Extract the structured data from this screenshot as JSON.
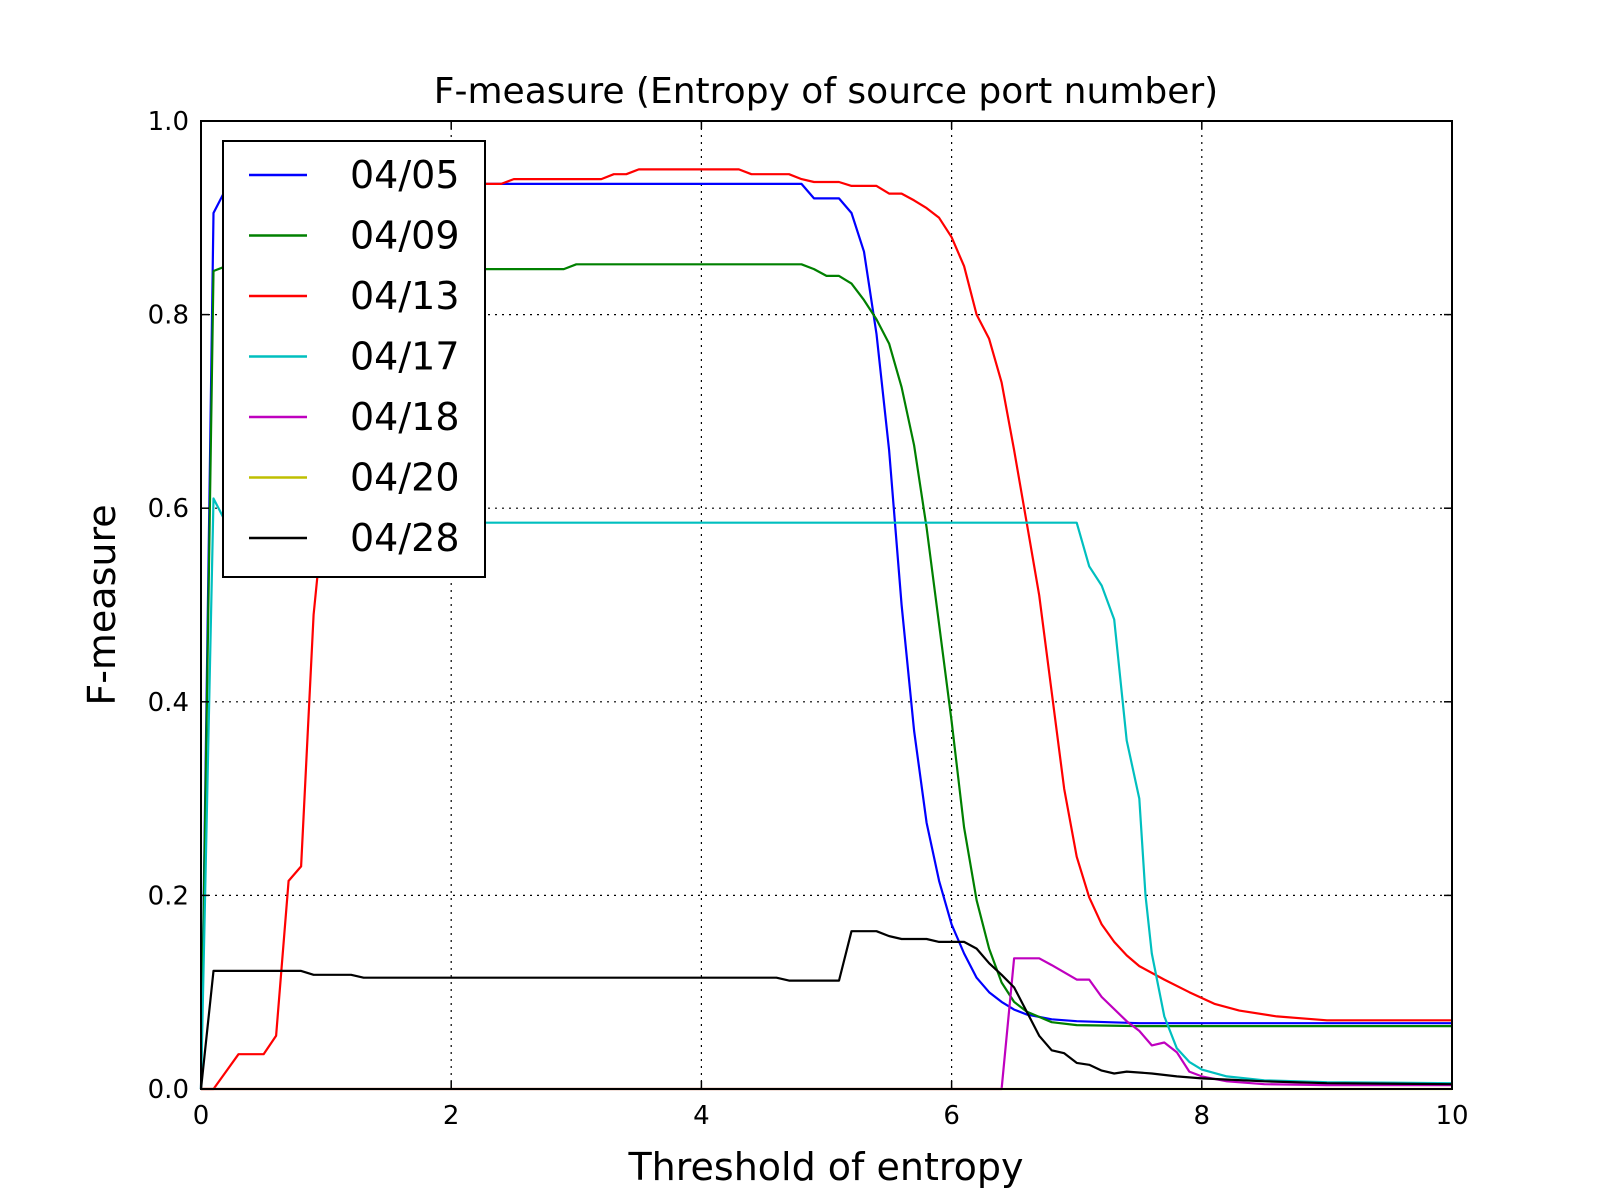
{
  "chart_data": {
    "type": "line",
    "title": "F-measure (Entropy of source port number)",
    "xlabel": "Threshold of entropy",
    "ylabel": "F-measure",
    "xlim": [
      0,
      10
    ],
    "ylim": [
      0,
      1.0
    ],
    "xticks": [
      0,
      2,
      4,
      6,
      8,
      10
    ],
    "xtick_labels": [
      "0",
      "2",
      "4",
      "6",
      "8",
      "10"
    ],
    "yticks": [
      0.0,
      0.2,
      0.4,
      0.6,
      0.8,
      1.0
    ],
    "ytick_labels": [
      "0.0",
      "0.2",
      "0.4",
      "0.6",
      "0.8",
      "1.0"
    ],
    "grid": true,
    "legend_position": "upper-left",
    "series": [
      {
        "name": "04/05",
        "color": "#0000ff",
        "points": [
          [
            0,
            0
          ],
          [
            0.1,
            0.905
          ],
          [
            0.2,
            0.93
          ],
          [
            0.4,
            0.935
          ],
          [
            1,
            0.935
          ],
          [
            2,
            0.935
          ],
          [
            3,
            0.935
          ],
          [
            4,
            0.935
          ],
          [
            4.8,
            0.935
          ],
          [
            4.9,
            0.92
          ],
          [
            5.1,
            0.92
          ],
          [
            5.2,
            0.905
          ],
          [
            5.3,
            0.865
          ],
          [
            5.4,
            0.78
          ],
          [
            5.5,
            0.66
          ],
          [
            5.6,
            0.5
          ],
          [
            5.7,
            0.37
          ],
          [
            5.8,
            0.275
          ],
          [
            5.9,
            0.215
          ],
          [
            6.0,
            0.17
          ],
          [
            6.1,
            0.14
          ],
          [
            6.2,
            0.115
          ],
          [
            6.3,
            0.1
          ],
          [
            6.4,
            0.09
          ],
          [
            6.5,
            0.082
          ],
          [
            6.6,
            0.077
          ],
          [
            6.8,
            0.072
          ],
          [
            7.0,
            0.07
          ],
          [
            7.5,
            0.068
          ],
          [
            8,
            0.068
          ],
          [
            9,
            0.068
          ],
          [
            10,
            0.068
          ]
        ]
      },
      {
        "name": "04/09",
        "color": "#008000",
        "points": [
          [
            0,
            0
          ],
          [
            0.1,
            0.845
          ],
          [
            0.2,
            0.85
          ],
          [
            0.5,
            0.847
          ],
          [
            1,
            0.847
          ],
          [
            2,
            0.847
          ],
          [
            2.9,
            0.847
          ],
          [
            3.0,
            0.852
          ],
          [
            4,
            0.852
          ],
          [
            4.8,
            0.852
          ],
          [
            4.9,
            0.847
          ],
          [
            5.0,
            0.84
          ],
          [
            5.1,
            0.84
          ],
          [
            5.2,
            0.832
          ],
          [
            5.3,
            0.815
          ],
          [
            5.4,
            0.795
          ],
          [
            5.5,
            0.77
          ],
          [
            5.6,
            0.725
          ],
          [
            5.7,
            0.665
          ],
          [
            5.8,
            0.58
          ],
          [
            5.9,
            0.48
          ],
          [
            6.0,
            0.38
          ],
          [
            6.1,
            0.27
          ],
          [
            6.2,
            0.195
          ],
          [
            6.3,
            0.145
          ],
          [
            6.4,
            0.11
          ],
          [
            6.5,
            0.09
          ],
          [
            6.6,
            0.08
          ],
          [
            6.8,
            0.069
          ],
          [
            7.0,
            0.066
          ],
          [
            7.5,
            0.065
          ],
          [
            8,
            0.065
          ],
          [
            9,
            0.065
          ],
          [
            10,
            0.065
          ]
        ]
      },
      {
        "name": "04/13",
        "color": "#ff0000",
        "points": [
          [
            0,
            0
          ],
          [
            0.1,
            0
          ],
          [
            0.2,
            0.018
          ],
          [
            0.3,
            0.036
          ],
          [
            0.5,
            0.036
          ],
          [
            0.6,
            0.055
          ],
          [
            0.7,
            0.215
          ],
          [
            0.8,
            0.23
          ],
          [
            0.9,
            0.49
          ],
          [
            1.0,
            0.62
          ],
          [
            1.1,
            0.8
          ],
          [
            1.2,
            0.88
          ],
          [
            1.4,
            0.92
          ],
          [
            1.6,
            0.93
          ],
          [
            2.0,
            0.935
          ],
          [
            2.4,
            0.935
          ],
          [
            2.5,
            0.94
          ],
          [
            3.2,
            0.94
          ],
          [
            3.3,
            0.945
          ],
          [
            3.4,
            0.945
          ],
          [
            3.5,
            0.95
          ],
          [
            4.3,
            0.95
          ],
          [
            4.4,
            0.945
          ],
          [
            4.7,
            0.945
          ],
          [
            4.8,
            0.94
          ],
          [
            4.9,
            0.937
          ],
          [
            5.1,
            0.937
          ],
          [
            5.2,
            0.933
          ],
          [
            5.4,
            0.933
          ],
          [
            5.5,
            0.925
          ],
          [
            5.6,
            0.925
          ],
          [
            5.7,
            0.918
          ],
          [
            5.8,
            0.91
          ],
          [
            5.9,
            0.9
          ],
          [
            6.0,
            0.88
          ],
          [
            6.1,
            0.85
          ],
          [
            6.2,
            0.8
          ],
          [
            6.3,
            0.775
          ],
          [
            6.4,
            0.73
          ],
          [
            6.5,
            0.66
          ],
          [
            6.6,
            0.585
          ],
          [
            6.7,
            0.51
          ],
          [
            6.8,
            0.41
          ],
          [
            6.9,
            0.31
          ],
          [
            7.0,
            0.24
          ],
          [
            7.1,
            0.198
          ],
          [
            7.2,
            0.17
          ],
          [
            7.3,
            0.152
          ],
          [
            7.4,
            0.138
          ],
          [
            7.5,
            0.127
          ],
          [
            7.7,
            0.113
          ],
          [
            7.9,
            0.1
          ],
          [
            8.1,
            0.088
          ],
          [
            8.3,
            0.081
          ],
          [
            8.6,
            0.075
          ],
          [
            9.0,
            0.071
          ],
          [
            10,
            0.071
          ]
        ]
      },
      {
        "name": "04/17",
        "color": "#00bfbf",
        "points": [
          [
            0,
            0
          ],
          [
            0.1,
            0.61
          ],
          [
            0.2,
            0.585
          ],
          [
            0.5,
            0.585
          ],
          [
            1,
            0.585
          ],
          [
            2,
            0.585
          ],
          [
            3,
            0.585
          ],
          [
            4,
            0.585
          ],
          [
            5,
            0.585
          ],
          [
            6,
            0.585
          ],
          [
            7.0,
            0.585
          ],
          [
            7.1,
            0.54
          ],
          [
            7.2,
            0.52
          ],
          [
            7.3,
            0.485
          ],
          [
            7.4,
            0.36
          ],
          [
            7.5,
            0.3
          ],
          [
            7.55,
            0.2
          ],
          [
            7.6,
            0.14
          ],
          [
            7.7,
            0.075
          ],
          [
            7.8,
            0.042
          ],
          [
            7.9,
            0.028
          ],
          [
            8.0,
            0.02
          ],
          [
            8.2,
            0.013
          ],
          [
            8.5,
            0.009
          ],
          [
            9,
            0.007
          ],
          [
            10,
            0.006
          ]
        ]
      },
      {
        "name": "04/18",
        "color": "#bf00bf",
        "points": [
          [
            0,
            0
          ],
          [
            6.4,
            0
          ],
          [
            6.5,
            0.135
          ],
          [
            6.7,
            0.135
          ],
          [
            6.8,
            0.128
          ],
          [
            7.0,
            0.113
          ],
          [
            7.1,
            0.113
          ],
          [
            7.2,
            0.095
          ],
          [
            7.4,
            0.07
          ],
          [
            7.5,
            0.06
          ],
          [
            7.6,
            0.045
          ],
          [
            7.7,
            0.048
          ],
          [
            7.8,
            0.038
          ],
          [
            7.9,
            0.018
          ],
          [
            8.0,
            0.013
          ],
          [
            8.2,
            0.008
          ],
          [
            8.5,
            0.005
          ],
          [
            9,
            0.004
          ],
          [
            10,
            0.004
          ]
        ]
      },
      {
        "name": "04/20",
        "color": "#bfbf00",
        "points": [
          [
            0,
            0
          ],
          [
            10,
            0
          ]
        ]
      },
      {
        "name": "04/28",
        "color": "#000000",
        "points": [
          [
            0,
            0
          ],
          [
            0.1,
            0.122
          ],
          [
            0.8,
            0.122
          ],
          [
            0.9,
            0.118
          ],
          [
            1.2,
            0.118
          ],
          [
            1.3,
            0.115
          ],
          [
            4.6,
            0.115
          ],
          [
            4.7,
            0.112
          ],
          [
            5.1,
            0.112
          ],
          [
            5.2,
            0.163
          ],
          [
            5.4,
            0.163
          ],
          [
            5.5,
            0.158
          ],
          [
            5.6,
            0.155
          ],
          [
            5.8,
            0.155
          ],
          [
            5.9,
            0.152
          ],
          [
            6.1,
            0.152
          ],
          [
            6.2,
            0.145
          ],
          [
            6.3,
            0.13
          ],
          [
            6.4,
            0.118
          ],
          [
            6.5,
            0.105
          ],
          [
            6.6,
            0.08
          ],
          [
            6.7,
            0.055
          ],
          [
            6.8,
            0.04
          ],
          [
            6.9,
            0.037
          ],
          [
            7.0,
            0.027
          ],
          [
            7.1,
            0.025
          ],
          [
            7.2,
            0.019
          ],
          [
            7.3,
            0.016
          ],
          [
            7.4,
            0.018
          ],
          [
            7.6,
            0.016
          ],
          [
            7.8,
            0.013
          ],
          [
            8.0,
            0.011
          ],
          [
            8.5,
            0.008
          ],
          [
            9,
            0.006
          ],
          [
            10,
            0.005
          ]
        ]
      }
    ]
  }
}
